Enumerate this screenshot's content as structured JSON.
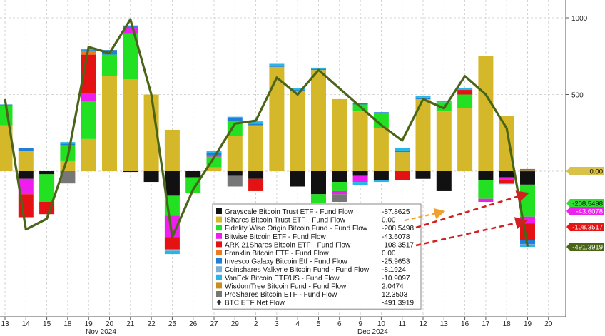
{
  "chart_data": {
    "type": "bar",
    "title": "",
    "xlabel": "",
    "ylabel": "",
    "ylim": [
      -980,
      1000
    ],
    "yticks": [
      1000,
      500,
      0,
      -500
    ],
    "grid": true,
    "legend_placement": "bottom-center",
    "x_tick_labels": [
      "13",
      "14",
      "15",
      "18",
      "19",
      "20",
      "21",
      "22",
      "25",
      "26",
      "27",
      "29",
      "2",
      "3",
      "4",
      "5",
      "6",
      "9",
      "10",
      "11",
      "12",
      "13",
      "16",
      "17",
      "18",
      "19",
      "20"
    ],
    "month_labels": [
      {
        "label": "Nov 2024",
        "at_index": 5
      },
      {
        "label": "Dec 2024",
        "at_index": 18
      }
    ],
    "stack_order": [
      "GBTC",
      "IBIT",
      "FBTC",
      "BITB",
      "ARKB",
      "EZBC",
      "BTCO",
      "BRRR",
      "HODL",
      "BTCW",
      "BTC"
    ],
    "categories": [
      "13",
      "14",
      "15",
      "18",
      "19",
      "20",
      "21",
      "22",
      "25",
      "26",
      "27",
      "29",
      "2",
      "3",
      "4",
      "5",
      "6",
      "9",
      "10",
      "11",
      "12",
      "13",
      "16",
      "17",
      "18",
      "19"
    ],
    "series": [
      {
        "key": "GBTC",
        "name": "Grayscale Bitcoin Trust ETF - Fund Flow",
        "latest": "-87.8625",
        "color": "#111111",
        "values": [
          0,
          -50,
          -20,
          0,
          0,
          0,
          -5,
          -70,
          -160,
          -40,
          0,
          -30,
          -50,
          0,
          -100,
          -150,
          -70,
          -30,
          -60,
          0,
          -50,
          -130,
          0,
          -60,
          -40,
          -87.86
        ]
      },
      {
        "key": "IBIT",
        "name": "iShares Bitcoin Trust ETF - Fund Flow",
        "latest": "0.00",
        "color": "#d4b82a",
        "values": [
          300,
          130,
          0,
          70,
          210,
          620,
          600,
          500,
          270,
          0,
          25,
          230,
          300,
          680,
          520,
          660,
          470,
          390,
          280,
          125,
          470,
          390,
          410,
          750,
          360,
          0
        ]
      },
      {
        "key": "FBTC",
        "name": "Fidelity Wise Origin Bitcoin Fund - Fund Flow",
        "latest": "-208.5498",
        "color": "#22e022",
        "values": [
          130,
          0,
          -180,
          100,
          250,
          140,
          300,
          0,
          -130,
          -100,
          70,
          100,
          0,
          0,
          0,
          -60,
          -60,
          45,
          100,
          0,
          0,
          60,
          90,
          -120,
          0,
          -208.55
        ]
      },
      {
        "key": "BITB",
        "name": "Bitwise Bitcoin ETF - Fund Flow",
        "latest": "-43.6078",
        "color": "#ee1fee",
        "values": [
          0,
          -100,
          0,
          0,
          50,
          0,
          40,
          0,
          -140,
          0,
          10,
          0,
          0,
          0,
          0,
          0,
          -20,
          -40,
          0,
          0,
          0,
          0,
          0,
          -20,
          -20,
          -43.61
        ]
      },
      {
        "key": "ARKB",
        "name": "ARK 21Shares Bitcoin ETF - Fund Flow",
        "latest": "-108.3517",
        "color": "#e41212",
        "values": [
          0,
          -150,
          -80,
          0,
          250,
          0,
          0,
          0,
          -80,
          0,
          0,
          0,
          -80,
          0,
          0,
          0,
          0,
          0,
          0,
          -60,
          0,
          0,
          30,
          0,
          -15,
          -108.35
        ]
      },
      {
        "key": "EZBC",
        "name": "Franklin Bitcoin ETF - Fund Flow",
        "latest": "0.00",
        "color": "#ee7a1a",
        "values": [
          0,
          0,
          0,
          0,
          20,
          0,
          0,
          0,
          0,
          0,
          0,
          0,
          0,
          0,
          0,
          0,
          0,
          0,
          0,
          0,
          0,
          0,
          0,
          0,
          0,
          0
        ]
      },
      {
        "key": "BTCO",
        "name": "Invesco Galaxy Bitcoin Etf - Fund Flow",
        "latest": "-25.9653",
        "color": "#1f7fd6",
        "values": [
          5,
          20,
          0,
          10,
          10,
          30,
          10,
          0,
          0,
          0,
          15,
          15,
          10,
          10,
          10,
          5,
          0,
          10,
          5,
          10,
          10,
          0,
          0,
          0,
          0,
          -25.97
        ]
      },
      {
        "key": "BRRR",
        "name": "Coinshares Valkyrie Bitcoin Fund - Fund Flow",
        "latest": "-8.1924",
        "color": "#7ab0d6",
        "values": [
          0,
          0,
          0,
          0,
          0,
          0,
          0,
          0,
          -10,
          0,
          0,
          0,
          0,
          0,
          0,
          0,
          0,
          0,
          0,
          0,
          0,
          0,
          0,
          0,
          0,
          -8.19
        ]
      },
      {
        "key": "HODL",
        "name": "VanEck Bitcoin ETF/US - Fund Flow",
        "latest": "-10.9097",
        "color": "#29b6e6",
        "values": [
          0,
          0,
          0,
          10,
          10,
          0,
          0,
          0,
          -20,
          0,
          10,
          10,
          15,
          10,
          10,
          10,
          0,
          -20,
          -10,
          15,
          10,
          10,
          10,
          0,
          -10,
          -10.91
        ]
      },
      {
        "key": "BTCW",
        "name": "WisdomTree Bitcoin Fund - Fund Flow",
        "latest": "2.0474",
        "color": "#c98d1d",
        "values": [
          0,
          0,
          0,
          0,
          0,
          0,
          0,
          0,
          0,
          0,
          0,
          0,
          0,
          0,
          0,
          0,
          0,
          0,
          0,
          0,
          0,
          0,
          0,
          0,
          0,
          2.05
        ]
      },
      {
        "key": "BTC",
        "name": "ProShares Bitcoin ETF - Fund Flow",
        "latest": "12.3503",
        "color": "#777777",
        "values": [
          0,
          0,
          0,
          -80,
          0,
          0,
          0,
          0,
          0,
          0,
          0,
          -70,
          0,
          0,
          0,
          0,
          -50,
          0,
          0,
          0,
          0,
          0,
          0,
          0,
          0,
          12.35
        ]
      }
    ],
    "net_flow": {
      "name": "BTC ETF Net Flow",
      "latest": "-491.3919",
      "color": "#4a6418",
      "values": [
        470,
        -380,
        -310,
        90,
        810,
        770,
        990,
        500,
        -430,
        -120,
        90,
        310,
        330,
        610,
        500,
        660,
        540,
        420,
        300,
        200,
        470,
        410,
        620,
        500,
        280,
        -491.39
      ]
    },
    "right_tags": [
      {
        "label": "0.00",
        "value": 0,
        "bg": "#d8c24a",
        "fg": "#000000"
      },
      {
        "label": "-208.5498",
        "value": -208.5498,
        "bg": "#33dd33",
        "fg": "#000000"
      },
      {
        "label": "-43.6078",
        "value": -43.6078,
        "bg": "#ee22ee",
        "fg": "#ffffff"
      },
      {
        "label": "-108.3517",
        "value": -108.3517,
        "bg": "#e51616",
        "fg": "#ffffff"
      },
      {
        "label": "-491.3919",
        "value": -491.3919,
        "bg": "#4a6418",
        "fg": "#ffffff"
      }
    ]
  }
}
